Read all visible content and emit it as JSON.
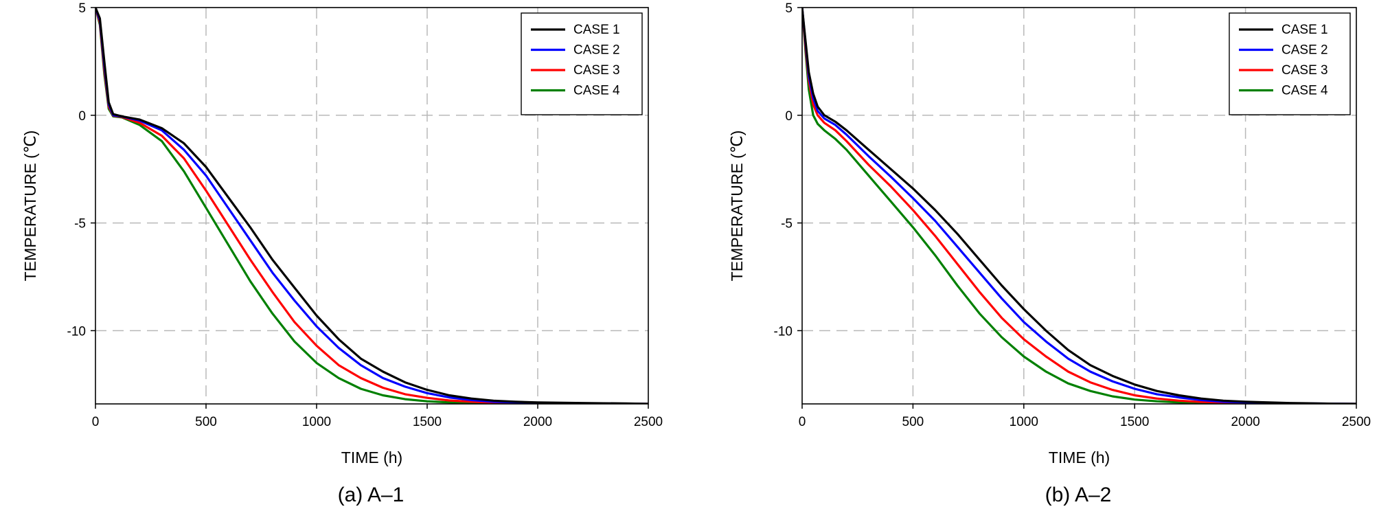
{
  "chart_data": [
    {
      "type": "line",
      "caption": "(a) A–1",
      "xlabel": "TIME (h)",
      "ylabel": "TEMPERATURE (℃)",
      "xlim": [
        0,
        2500
      ],
      "ylim": [
        -13.4,
        5
      ],
      "xticks": [
        0,
        500,
        1000,
        1500,
        2000,
        2500
      ],
      "yticks": [
        5,
        0,
        -5,
        -10
      ],
      "grid": true,
      "legend_position": "top-right",
      "series": [
        {
          "name": "CASE 1",
          "color": "#000000",
          "points": [
            [
              0,
              5
            ],
            [
              20,
              4.5
            ],
            [
              40,
              2.5
            ],
            [
              60,
              0.6
            ],
            [
              80,
              0.05
            ],
            [
              120,
              -0.05
            ],
            [
              200,
              -0.2
            ],
            [
              300,
              -0.6
            ],
            [
              400,
              -1.3
            ],
            [
              500,
              -2.4
            ],
            [
              600,
              -3.8
            ],
            [
              700,
              -5.2
            ],
            [
              800,
              -6.7
            ],
            [
              900,
              -8.0
            ],
            [
              1000,
              -9.3
            ],
            [
              1100,
              -10.4
            ],
            [
              1200,
              -11.3
            ],
            [
              1300,
              -11.9
            ],
            [
              1400,
              -12.4
            ],
            [
              1500,
              -12.75
            ],
            [
              1600,
              -13.0
            ],
            [
              1700,
              -13.15
            ],
            [
              1800,
              -13.25
            ],
            [
              1900,
              -13.3
            ],
            [
              2000,
              -13.33
            ],
            [
              2200,
              -13.36
            ],
            [
              2400,
              -13.38
            ],
            [
              2500,
              -13.4
            ]
          ]
        },
        {
          "name": "CASE 2",
          "color": "#0000ff",
          "points": [
            [
              0,
              5
            ],
            [
              20,
              4.4
            ],
            [
              40,
              2.3
            ],
            [
              60,
              0.5
            ],
            [
              80,
              0.0
            ],
            [
              120,
              -0.06
            ],
            [
              200,
              -0.25
            ],
            [
              300,
              -0.7
            ],
            [
              400,
              -1.6
            ],
            [
              500,
              -2.8
            ],
            [
              600,
              -4.3
            ],
            [
              700,
              -5.8
            ],
            [
              800,
              -7.3
            ],
            [
              900,
              -8.6
            ],
            [
              1000,
              -9.8
            ],
            [
              1100,
              -10.8
            ],
            [
              1200,
              -11.6
            ],
            [
              1300,
              -12.2
            ],
            [
              1400,
              -12.6
            ],
            [
              1500,
              -12.9
            ],
            [
              1600,
              -13.1
            ],
            [
              1700,
              -13.22
            ],
            [
              1800,
              -13.3
            ],
            [
              1900,
              -13.33
            ],
            [
              2000,
              -13.35
            ],
            [
              2200,
              -13.37
            ],
            [
              2400,
              -13.39
            ],
            [
              2500,
              -13.4
            ]
          ]
        },
        {
          "name": "CASE 3",
          "color": "#ff0000",
          "points": [
            [
              0,
              5
            ],
            [
              20,
              4.3
            ],
            [
              40,
              2.1
            ],
            [
              60,
              0.4
            ],
            [
              80,
              -0.02
            ],
            [
              120,
              -0.08
            ],
            [
              200,
              -0.35
            ],
            [
              300,
              -0.95
            ],
            [
              400,
              -2.0
            ],
            [
              500,
              -3.5
            ],
            [
              600,
              -5.1
            ],
            [
              700,
              -6.7
            ],
            [
              800,
              -8.2
            ],
            [
              900,
              -9.6
            ],
            [
              1000,
              -10.7
            ],
            [
              1100,
              -11.6
            ],
            [
              1200,
              -12.2
            ],
            [
              1300,
              -12.65
            ],
            [
              1400,
              -12.95
            ],
            [
              1500,
              -13.12
            ],
            [
              1600,
              -13.24
            ],
            [
              1700,
              -13.3
            ],
            [
              1800,
              -13.34
            ],
            [
              2000,
              -13.37
            ],
            [
              2200,
              -13.38
            ],
            [
              2500,
              -13.4
            ]
          ]
        },
        {
          "name": "CASE 4",
          "color": "#008000",
          "points": [
            [
              0,
              5
            ],
            [
              20,
              4.2
            ],
            [
              40,
              1.9
            ],
            [
              60,
              0.3
            ],
            [
              80,
              -0.05
            ],
            [
              120,
              -0.1
            ],
            [
              200,
              -0.45
            ],
            [
              300,
              -1.2
            ],
            [
              400,
              -2.6
            ],
            [
              500,
              -4.3
            ],
            [
              600,
              -6.0
            ],
            [
              700,
              -7.7
            ],
            [
              800,
              -9.2
            ],
            [
              900,
              -10.5
            ],
            [
              1000,
              -11.5
            ],
            [
              1100,
              -12.2
            ],
            [
              1200,
              -12.7
            ],
            [
              1300,
              -13.0
            ],
            [
              1400,
              -13.18
            ],
            [
              1500,
              -13.28
            ],
            [
              1600,
              -13.33
            ],
            [
              1800,
              -13.37
            ],
            [
              2000,
              -13.39
            ],
            [
              2500,
              -13.4
            ]
          ]
        }
      ]
    },
    {
      "type": "line",
      "caption": "(b) A–2",
      "xlabel": "TIME (h)",
      "ylabel": "TEMPERATURE (℃)",
      "xlim": [
        0,
        2500
      ],
      "ylim": [
        -13.4,
        5
      ],
      "xticks": [
        0,
        500,
        1000,
        1500,
        2000,
        2500
      ],
      "yticks": [
        5,
        0,
        -5,
        -10
      ],
      "grid": true,
      "legend_position": "top-right",
      "series": [
        {
          "name": "CASE 1",
          "color": "#000000",
          "points": [
            [
              0,
              5
            ],
            [
              15,
              3.5
            ],
            [
              30,
              2.0
            ],
            [
              50,
              1.0
            ],
            [
              70,
              0.4
            ],
            [
              100,
              0.0
            ],
            [
              150,
              -0.3
            ],
            [
              200,
              -0.7
            ],
            [
              300,
              -1.6
            ],
            [
              400,
              -2.5
            ],
            [
              500,
              -3.4
            ],
            [
              600,
              -4.4
            ],
            [
              700,
              -5.5
            ],
            [
              800,
              -6.7
            ],
            [
              900,
              -7.9
            ],
            [
              1000,
              -9.0
            ],
            [
              1100,
              -10.0
            ],
            [
              1200,
              -10.9
            ],
            [
              1300,
              -11.6
            ],
            [
              1400,
              -12.1
            ],
            [
              1500,
              -12.5
            ],
            [
              1600,
              -12.8
            ],
            [
              1700,
              -13.0
            ],
            [
              1800,
              -13.15
            ],
            [
              1900,
              -13.25
            ],
            [
              2000,
              -13.3
            ],
            [
              2200,
              -13.36
            ],
            [
              2400,
              -13.39
            ],
            [
              2500,
              -13.4
            ]
          ]
        },
        {
          "name": "CASE 2",
          "color": "#0000ff",
          "points": [
            [
              0,
              5
            ],
            [
              15,
              3.4
            ],
            [
              30,
              1.8
            ],
            [
              50,
              0.8
            ],
            [
              70,
              0.2
            ],
            [
              100,
              -0.15
            ],
            [
              150,
              -0.45
            ],
            [
              200,
              -0.9
            ],
            [
              300,
              -1.9
            ],
            [
              400,
              -2.85
            ],
            [
              500,
              -3.85
            ],
            [
              600,
              -4.9
            ],
            [
              700,
              -6.1
            ],
            [
              800,
              -7.3
            ],
            [
              900,
              -8.5
            ],
            [
              1000,
              -9.6
            ],
            [
              1100,
              -10.5
            ],
            [
              1200,
              -11.3
            ],
            [
              1300,
              -11.9
            ],
            [
              1400,
              -12.35
            ],
            [
              1500,
              -12.7
            ],
            [
              1600,
              -12.95
            ],
            [
              1700,
              -13.1
            ],
            [
              1800,
              -13.22
            ],
            [
              1900,
              -13.3
            ],
            [
              2000,
              -13.33
            ],
            [
              2200,
              -13.37
            ],
            [
              2500,
              -13.4
            ]
          ]
        },
        {
          "name": "CASE 3",
          "color": "#ff0000",
          "points": [
            [
              0,
              5
            ],
            [
              15,
              3.2
            ],
            [
              30,
              1.6
            ],
            [
              50,
              0.5
            ],
            [
              70,
              0.0
            ],
            [
              100,
              -0.35
            ],
            [
              150,
              -0.7
            ],
            [
              200,
              -1.2
            ],
            [
              300,
              -2.3
            ],
            [
              400,
              -3.3
            ],
            [
              500,
              -4.4
            ],
            [
              600,
              -5.6
            ],
            [
              700,
              -6.9
            ],
            [
              800,
              -8.2
            ],
            [
              900,
              -9.4
            ],
            [
              1000,
              -10.4
            ],
            [
              1100,
              -11.2
            ],
            [
              1200,
              -11.9
            ],
            [
              1300,
              -12.4
            ],
            [
              1400,
              -12.75
            ],
            [
              1500,
              -13.0
            ],
            [
              1600,
              -13.15
            ],
            [
              1700,
              -13.25
            ],
            [
              1800,
              -13.31
            ],
            [
              2000,
              -13.36
            ],
            [
              2200,
              -13.38
            ],
            [
              2500,
              -13.4
            ]
          ]
        },
        {
          "name": "CASE 4",
          "color": "#008000",
          "points": [
            [
              0,
              5
            ],
            [
              15,
              3.0
            ],
            [
              30,
              1.2
            ],
            [
              50,
              0.0
            ],
            [
              70,
              -0.4
            ],
            [
              100,
              -0.7
            ],
            [
              150,
              -1.1
            ],
            [
              200,
              -1.6
            ],
            [
              300,
              -2.8
            ],
            [
              400,
              -4.0
            ],
            [
              500,
              -5.2
            ],
            [
              600,
              -6.5
            ],
            [
              700,
              -7.9
            ],
            [
              800,
              -9.2
            ],
            [
              900,
              -10.3
            ],
            [
              1000,
              -11.2
            ],
            [
              1100,
              -11.9
            ],
            [
              1200,
              -12.45
            ],
            [
              1300,
              -12.8
            ],
            [
              1400,
              -13.05
            ],
            [
              1500,
              -13.2
            ],
            [
              1600,
              -13.28
            ],
            [
              1700,
              -13.33
            ],
            [
              1800,
              -13.36
            ],
            [
              2000,
              -13.38
            ],
            [
              2500,
              -13.4
            ]
          ]
        }
      ]
    }
  ]
}
